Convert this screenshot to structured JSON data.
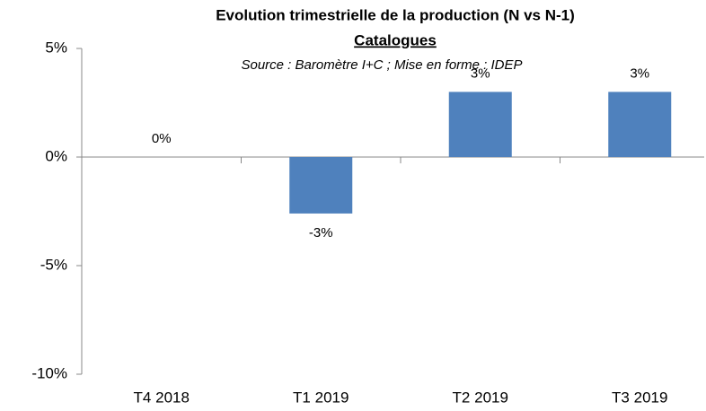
{
  "chart_data": {
    "type": "bar",
    "title": "Evolution trimestrielle de la production (N vs N-1)",
    "subtitle": "Catalogues",
    "annotation": "Source : Baromètre I+C ; Mise en forme : IDEP",
    "categories": [
      "T4 2018",
      "T1 2019",
      "T2 2019",
      "T3 2019"
    ],
    "values": [
      0,
      -2.6,
      3,
      3
    ],
    "value_labels": [
      "0%",
      "-3%",
      "3%",
      "3%"
    ],
    "color": "#4f81bd",
    "ylim": [
      -10,
      5
    ],
    "yticks": [
      {
        "value": -10,
        "label": "-10%"
      },
      {
        "value": -5,
        "label": "-5%"
      },
      {
        "value": 0,
        "label": "0%"
      },
      {
        "value": 5,
        "label": "5%"
      }
    ],
    "grid": false
  }
}
